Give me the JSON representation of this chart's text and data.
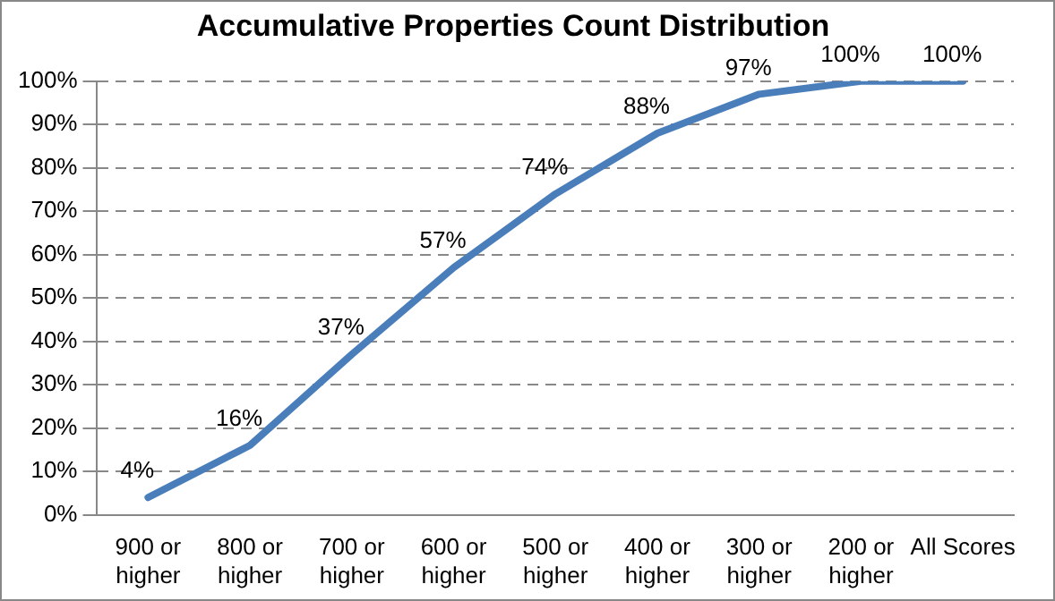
{
  "chart_data": {
    "type": "line",
    "title": "Accumulative Properties Count Distribution",
    "categories": [
      "900 or higher",
      "800 or higher",
      "700 or higher",
      "600 or higher",
      "500 or higher",
      "400 or higher",
      "300 or higher",
      "200 or higher",
      "All Scores"
    ],
    "series": [
      {
        "color": "#4a7ebb",
        "values": [
          4,
          16,
          37,
          57,
          74,
          88,
          97,
          100,
          100
        ],
        "value_labels": [
          "4%",
          "16%",
          "37%",
          "57%",
          "74%",
          "88%",
          "97%",
          "100%",
          "100%"
        ]
      }
    ],
    "ylim": [
      0,
      100
    ],
    "yticks": [
      {
        "value": 0,
        "label": "0%"
      },
      {
        "value": 10,
        "label": "10%"
      },
      {
        "value": 20,
        "label": "20%"
      },
      {
        "value": 30,
        "label": "30%"
      },
      {
        "value": 40,
        "label": "40%"
      },
      {
        "value": 50,
        "label": "50%"
      },
      {
        "value": 60,
        "label": "60%"
      },
      {
        "value": 70,
        "label": "70%"
      },
      {
        "value": 80,
        "label": "80%"
      },
      {
        "value": 90,
        "label": "90%"
      },
      {
        "value": 100,
        "label": "100%"
      }
    ],
    "grid": "y",
    "legend": false,
    "marker": "none",
    "line_style": "solid"
  }
}
